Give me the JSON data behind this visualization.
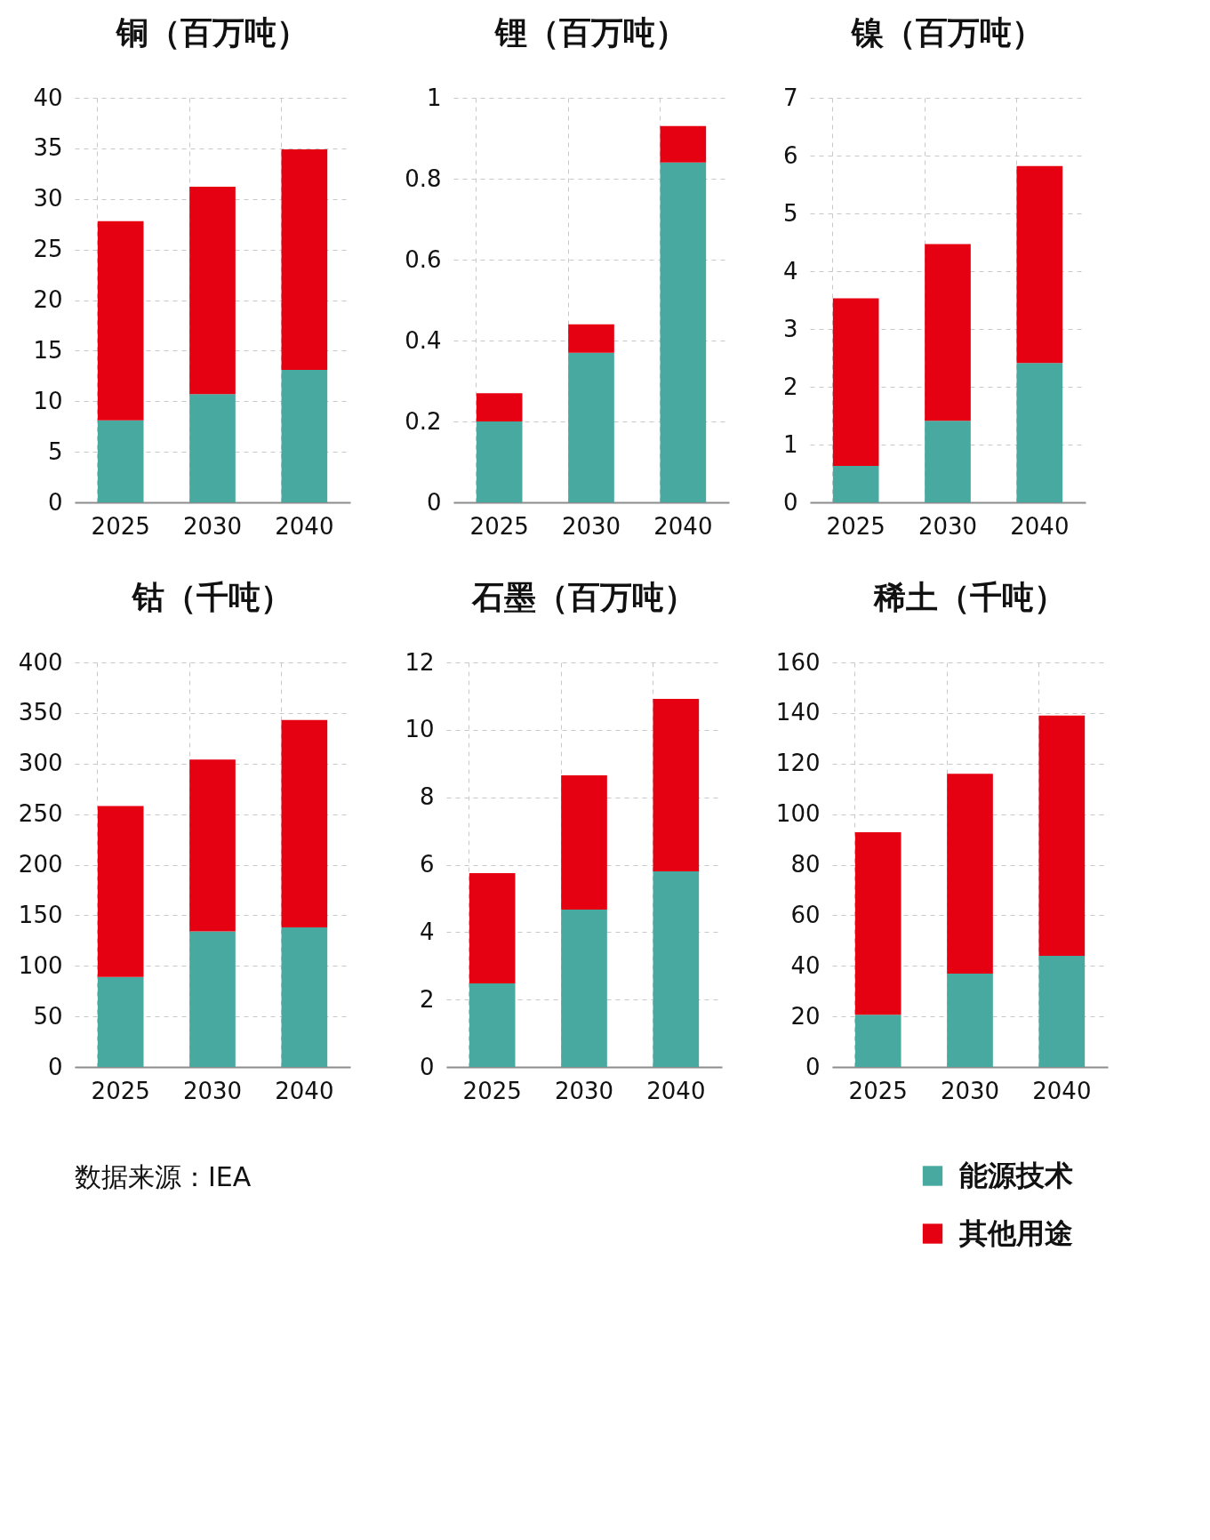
{
  "chart_data": [
    {
      "type": "bar",
      "title": "铜（百万吨）",
      "categories": [
        "2025",
        "2030",
        "2040"
      ],
      "stacked": true,
      "ylim": [
        0,
        40
      ],
      "yticks": [
        0,
        5,
        10,
        15,
        20,
        25,
        30,
        35,
        40
      ],
      "grid": true,
      "legend": "bottom right",
      "series": [
        {
          "name": "能源技术",
          "color": "#47a9a0",
          "values": [
            8.1,
            10.7,
            13.1
          ]
        },
        {
          "name": "其他用途",
          "color": "#e50012",
          "values": [
            19.7,
            20.5,
            21.8
          ]
        }
      ]
    },
    {
      "type": "bar",
      "title": "锂（百万吨）",
      "categories": [
        "2025",
        "2030",
        "2040"
      ],
      "stacked": true,
      "ylim": [
        0,
        1
      ],
      "yticks": [
        0,
        0.2,
        0.4,
        0.6,
        0.8,
        1
      ],
      "grid": true,
      "series": [
        {
          "color": "#47a9a0",
          "values": [
            0.2,
            0.37,
            0.84
          ]
        },
        {
          "color": "#e50012",
          "values": [
            0.07,
            0.07,
            0.09
          ]
        }
      ]
    },
    {
      "type": "bar",
      "title": "镍（百万吨）",
      "categories": [
        "2025",
        "2030",
        "2040"
      ],
      "stacked": true,
      "ylim": [
        0,
        7
      ],
      "yticks": [
        0,
        1,
        2,
        3,
        4,
        5,
        6,
        7
      ],
      "grid": true,
      "series": [
        {
          "color": "#47a9a0",
          "values": [
            0.63,
            1.41,
            2.41
          ]
        },
        {
          "color": "#e50012",
          "values": [
            2.9,
            3.06,
            3.41
          ]
        }
      ]
    },
    {
      "type": "bar",
      "title": "钴（千吨）",
      "categories": [
        "2025",
        "2030",
        "2040"
      ],
      "stacked": true,
      "ylim": [
        0,
        400
      ],
      "yticks": [
        0,
        50,
        100,
        150,
        200,
        250,
        300,
        350,
        400
      ],
      "grid": true,
      "annotations": [
        "数据来源：IEA"
      ],
      "series": [
        {
          "color": "#47a9a0",
          "values": [
            89,
            134,
            138
          ]
        },
        {
          "color": "#e50012",
          "values": [
            169,
            170,
            205
          ]
        }
      ]
    },
    {
      "type": "bar",
      "title": "石墨（百万吨）",
      "categories": [
        "2025",
        "2030",
        "2040"
      ],
      "stacked": true,
      "ylim": [
        0,
        12
      ],
      "yticks": [
        0,
        2,
        4,
        6,
        8,
        10,
        12
      ],
      "grid": true,
      "series": [
        {
          "color": "#47a9a0",
          "values": [
            2.48,
            4.67,
            5.8
          ]
        },
        {
          "color": "#e50012",
          "values": [
            3.27,
            3.98,
            5.12
          ]
        }
      ]
    },
    {
      "type": "bar",
      "title": "稀土（千吨）",
      "categories": [
        "2025",
        "2030",
        "2040"
      ],
      "stacked": true,
      "ylim": [
        0,
        160
      ],
      "yticks": [
        0,
        20,
        40,
        60,
        80,
        100,
        120,
        140,
        160
      ],
      "grid": true,
      "series": [
        {
          "color": "#47a9a0",
          "values": [
            20.7,
            36.9,
            44
          ]
        },
        {
          "color": "#e50012",
          "values": [
            72.1,
            79.1,
            95
          ]
        }
      ]
    }
  ]
}
